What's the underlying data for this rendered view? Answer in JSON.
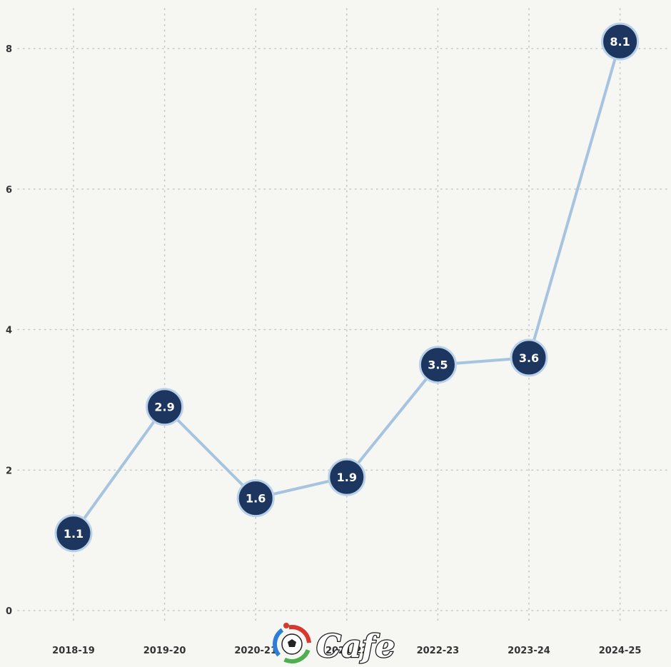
{
  "chart_data": {
    "type": "line",
    "categories": [
      "2018-19",
      "2019-20",
      "2020-21",
      "2021-22",
      "2022-23",
      "2023-24",
      "2024-25"
    ],
    "series": [
      {
        "values": [
          1.1,
          2.9,
          1.6,
          1.9,
          3.5,
          3.6,
          8.1
        ]
      }
    ],
    "point_labels": [
      "1.1",
      "2.9",
      "1.6",
      "1.9",
      "3.5",
      "3.6",
      "8.1"
    ],
    "y_ticks": [
      "0",
      "2",
      "4",
      "6",
      "8"
    ],
    "ylim": [
      0,
      8
    ],
    "grid": true,
    "grid_style": "dotted",
    "title": "",
    "xlabel": "",
    "ylabel": ""
  },
  "colors": {
    "background": "#f6f6f3",
    "line": "#a6c4df",
    "marker_fill": "#1c3660",
    "marker_stroke": "#b8d0e8",
    "grid": "#c8c8c4",
    "tick_text": "#333333"
  },
  "watermark": {
    "text": "Cafe",
    "icon": "soccer-ball-logo-icon"
  }
}
